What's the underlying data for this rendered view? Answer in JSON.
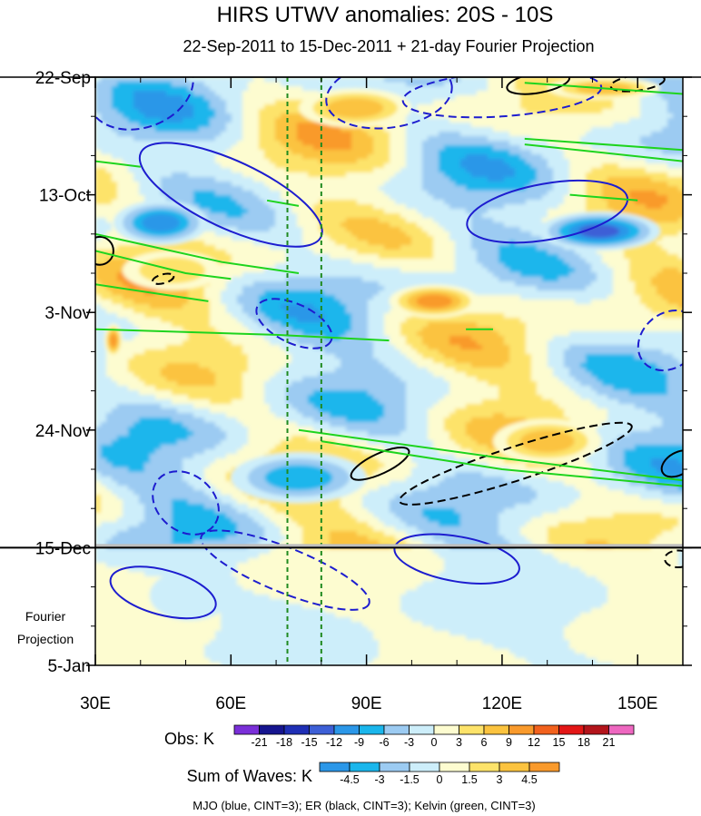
{
  "chart_data": {
    "type": "heatmap",
    "title": "HIRS UTWV anomalies: 20S - 10S",
    "subtitle": "22-Sep-2011 to 15-Dec-2011 + 21-day Fourier Projection",
    "x_axis": {
      "range": [
        30,
        160
      ],
      "ticks": [
        30,
        60,
        90,
        120,
        150
      ],
      "tick_labels": [
        "30E",
        "60E",
        "90E",
        "120E",
        "150E"
      ]
    },
    "y_axis": {
      "range_days": [
        0,
        105
      ],
      "ticks_days": [
        0,
        21,
        42,
        63,
        84,
        105
      ],
      "tick_labels": [
        "22-Sep",
        "13-Oct",
        "3-Nov",
        "24-Nov",
        "15-Dec",
        "5-Jan"
      ]
    },
    "forecast_start_day": 84,
    "projection_label": [
      "Fourier",
      "Projection"
    ],
    "reference_longitudes": [
      72.5,
      80
    ],
    "obs_colorbar": {
      "label": "Obs: K",
      "levels": [
        "-21",
        "-18",
        "-15",
        "-12",
        "-9",
        "-6",
        "-3",
        "0",
        "3",
        "6",
        "9",
        "12",
        "15",
        "18",
        "21"
      ],
      "colors": [
        "#7a2fd8",
        "#16158f",
        "#1f2fb5",
        "#3d5fd6",
        "#2b97e8",
        "#1ab6ec",
        "#9ccbf2",
        "#cdeefa",
        "#fdfcd0",
        "#fde36a",
        "#fbc33f",
        "#f99a2c",
        "#f2611d",
        "#e31616",
        "#b3141b",
        "#ee67c0"
      ]
    },
    "waves_colorbar": {
      "label": "Sum of Waves: K",
      "levels": [
        "-4.5",
        "-3",
        "-1.5",
        "0",
        "1.5",
        "3",
        "4.5"
      ],
      "colors": [
        "#2b97e8",
        "#1ab6ec",
        "#9ccbf2",
        "#cdeefa",
        "#fdfcd0",
        "#fde36a",
        "#fbc33f",
        "#f99a2c"
      ]
    },
    "contour_legend": "MJO (blue, CINT=3); ER (black, CINT=3); Kelvin (green, CINT=3)",
    "contour_colors": {
      "mjo": "#1d1dcf",
      "er": "#000000",
      "kelvin": "#1ed41e"
    },
    "anomaly_features": [
      {
        "lon": [
          32,
          36
        ],
        "day": [
          44,
          50
        ],
        "value": 12
      },
      {
        "lon": [
          95,
          115
        ],
        "day": [
          37,
          43
        ],
        "value": 12
      },
      {
        "lon": [
          118,
          142
        ],
        "day": [
          61,
          69
        ],
        "value": 9
      },
      {
        "lon": [
          75,
          100
        ],
        "day": [
          2,
          9
        ],
        "value": 9
      },
      {
        "lon": [
          130,
          155
        ],
        "day": [
          0,
          4
        ],
        "value": 9
      },
      {
        "lon": [
          36,
          58
        ],
        "day": [
          31,
          38
        ],
        "value": 6
      },
      {
        "lon": [
          34,
          55
        ],
        "day": [
          22,
          30
        ],
        "value": -12
      },
      {
        "lon": [
          128,
          155
        ],
        "day": [
          24,
          31
        ],
        "value": -15
      },
      {
        "lon": [
          60,
          90
        ],
        "day": [
          67,
          76
        ],
        "value": -9
      },
      {
        "lon": [
          42,
          60
        ],
        "day": [
          88,
          97
        ],
        "value": -3
      },
      {
        "lon": [
          68,
          80
        ],
        "day": [
          84,
          90
        ],
        "value": 3
      }
    ]
  }
}
